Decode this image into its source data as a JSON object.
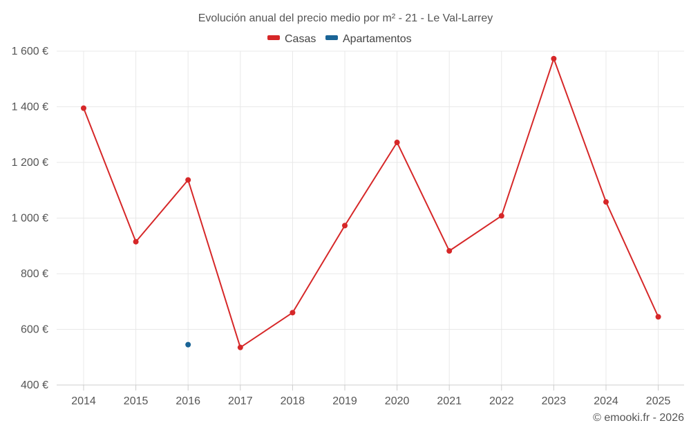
{
  "chart_data": {
    "type": "line",
    "title": "Evolución anual del precio medio por m² - 21 - Le Val-Larrey",
    "categories": [
      "2014",
      "2015",
      "2016",
      "2017",
      "2018",
      "2019",
      "2020",
      "2021",
      "2022",
      "2023",
      "2024",
      "2025"
    ],
    "series": [
      {
        "name": "Casas",
        "color": "#d62728",
        "values": [
          1395,
          915,
          1137,
          535,
          660,
          973,
          1272,
          882,
          1008,
          1573,
          1058,
          645
        ]
      },
      {
        "name": "Apartamentos",
        "color": "#1a6496",
        "values": [
          null,
          null,
          545,
          null,
          null,
          null,
          null,
          null,
          null,
          null,
          null,
          null
        ]
      }
    ],
    "ylim": [
      400,
      1600
    ],
    "yticks": [
      400,
      600,
      800,
      1000,
      1200,
      1400,
      1600
    ],
    "ytick_labels": [
      "400 €",
      "600 €",
      "800 €",
      "1 000 €",
      "1 200 €",
      "1 400 €",
      "1 600 €"
    ],
    "xlabel": "",
    "ylabel": "",
    "grid": true,
    "legend_position": "top-center"
  },
  "credit": "© emooki.fr - 2026"
}
